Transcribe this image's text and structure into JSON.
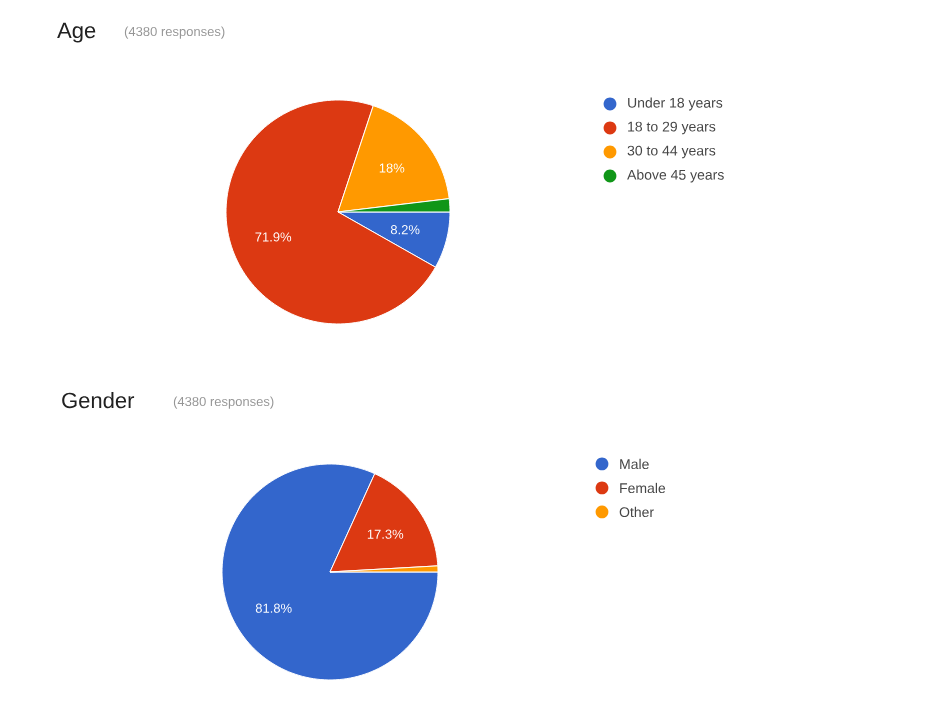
{
  "chart_data": [
    {
      "type": "pie",
      "title": "Age",
      "subtitle": "(4380 responses)",
      "categories": [
        "Under 18 years",
        "18 to 29 years",
        "30 to 44 years",
        "Above 45 years"
      ],
      "values": [
        8.2,
        71.9,
        18,
        1.9
      ],
      "colors": [
        "#3366cc",
        "#dc3912",
        "#ff9900",
        "#109618"
      ],
      "value_labels": [
        "8.2%",
        "71.9%",
        "18%",
        null
      ],
      "legend": "right"
    },
    {
      "type": "pie",
      "title": "Gender",
      "subtitle": "(4380 responses)",
      "categories": [
        "Male",
        "Female",
        "Other"
      ],
      "values": [
        81.8,
        17.3,
        0.9
      ],
      "colors": [
        "#3366cc",
        "#dc3912",
        "#ff9900"
      ],
      "value_labels": [
        "81.8%",
        "17.3%",
        null
      ],
      "legend": "right"
    }
  ]
}
